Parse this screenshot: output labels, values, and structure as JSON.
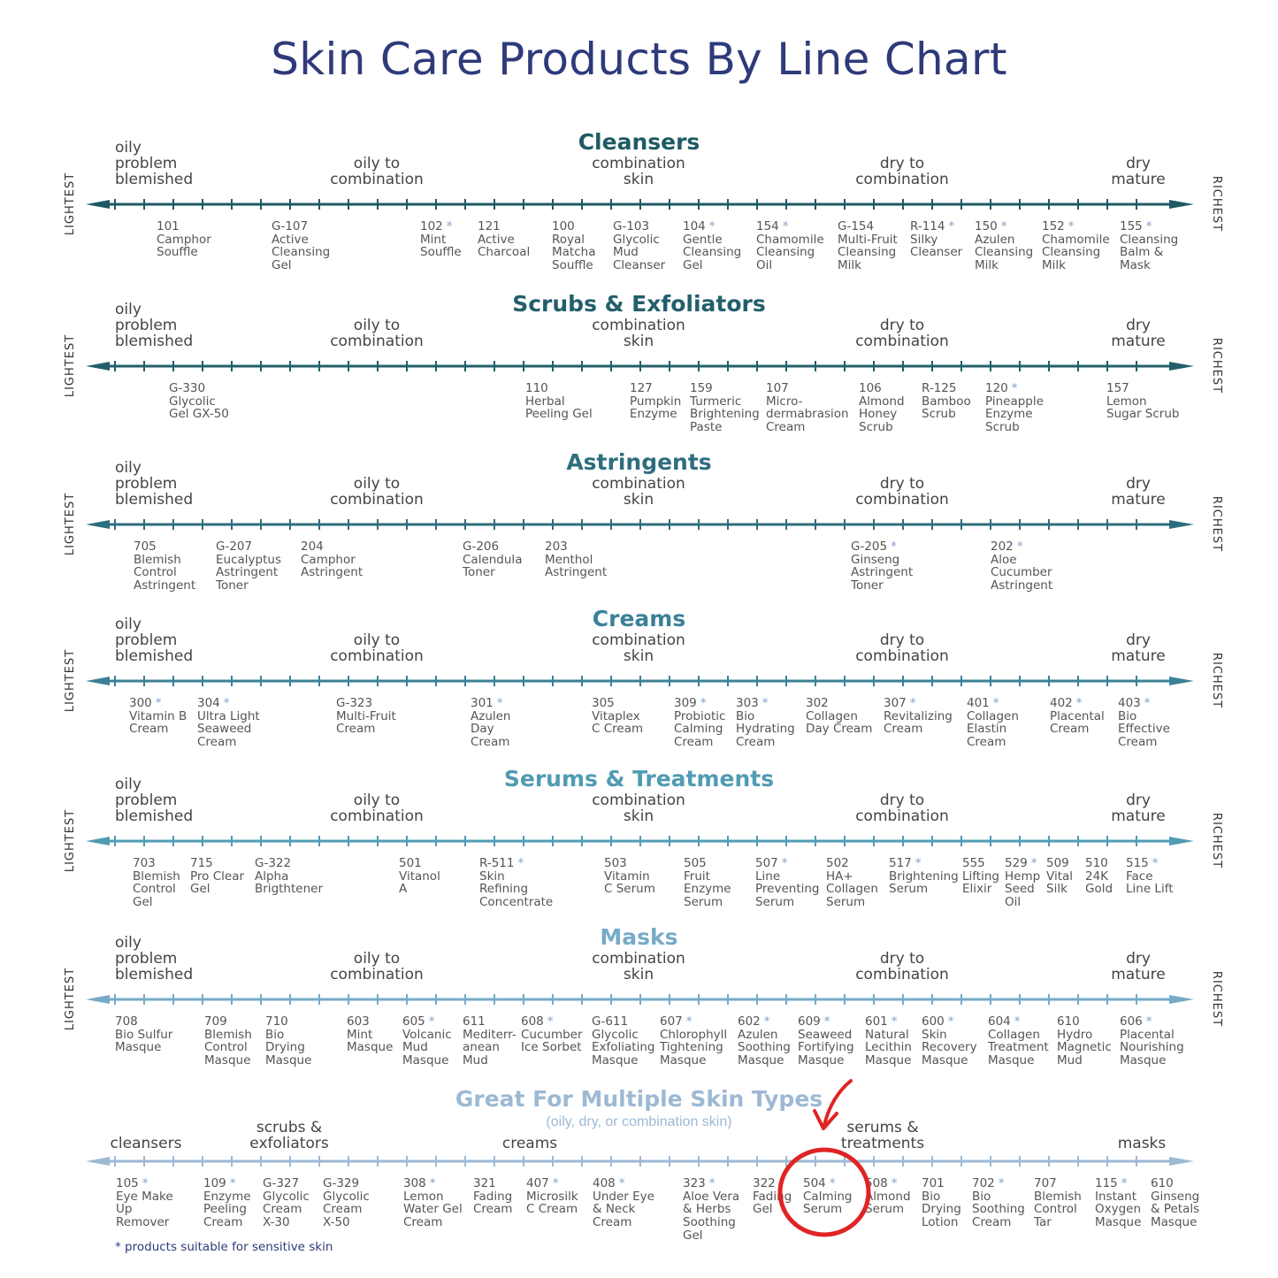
{
  "title": "Skin Care Products By Line Chart",
  "footnote": "* products suitable for sensitive skin",
  "side_left": "LIGHTEST",
  "side_right": "RICHEST",
  "skin_labels": [
    "oily\nproblem\nblemished",
    "oily to\ncombination",
    "combination\nskin",
    "dry to\ncombination",
    "dry\nmature"
  ],
  "sections": [
    {
      "title": "Cleansers",
      "color": "#1f5a63",
      "products": [
        {
          "code": "101",
          "star": false,
          "name": "Camphor\nSouffle"
        },
        {
          "code": "G-107",
          "star": false,
          "name": "Active\nCleansing\nGel"
        },
        {
          "code": "102",
          "star": true,
          "name": "Mint\nSouffle"
        },
        {
          "code": "121",
          "star": false,
          "name": "Active\nCharcoal"
        },
        {
          "code": "100",
          "star": false,
          "name": "Royal\nMatcha\nSouffle"
        },
        {
          "code": "G-103",
          "star": false,
          "name": "Glycolic\nMud\nCleanser"
        },
        {
          "code": "104",
          "star": true,
          "name": "Gentle\nCleansing\nGel"
        },
        {
          "code": "154",
          "star": true,
          "name": "Chamomile\nCleansing\nOil"
        },
        {
          "code": "G-154",
          "star": false,
          "name": "Multi-Fruit\nCleansing\nMilk"
        },
        {
          "code": "R-114",
          "star": true,
          "name": "Silky\nCleanser"
        },
        {
          "code": "150",
          "star": true,
          "name": "Azulen\nCleansing\nMilk"
        },
        {
          "code": "152",
          "star": true,
          "name": "Chamomile\nCleansing\nMilk"
        },
        {
          "code": "155",
          "star": true,
          "name": "Cleansing\nBalm &\nMask"
        }
      ]
    },
    {
      "title": "Scrubs & Exfoliators",
      "color": "#225f6b",
      "products": [
        {
          "code": "G-330",
          "star": false,
          "name": "Glycolic\nGel GX-50"
        },
        {
          "code": "110",
          "star": false,
          "name": "Herbal\nPeeling Gel"
        },
        {
          "code": "127",
          "star": false,
          "name": "Pumpkin\nEnzyme"
        },
        {
          "code": "159",
          "star": false,
          "name": "Turmeric\nBrightening\nPaste"
        },
        {
          "code": "107",
          "star": false,
          "name": "Micro-\ndermabrasion\nCream"
        },
        {
          "code": "106",
          "star": false,
          "name": "Almond\nHoney\nScrub"
        },
        {
          "code": "R-125",
          "star": false,
          "name": "Bamboo\nScrub"
        },
        {
          "code": "120",
          "star": true,
          "name": "Pineapple\nEnzyme\nScrub"
        },
        {
          "code": "157",
          "star": false,
          "name": "Lemon\nSugar Scrub"
        }
      ]
    },
    {
      "title": "Astringents",
      "color": "#2d6e7e",
      "products": [
        {
          "code": "705",
          "star": false,
          "name": "Blemish\nControl\nAstringent"
        },
        {
          "code": "G-207",
          "star": false,
          "name": "Eucalyptus\nAstringent\nToner"
        },
        {
          "code": "204",
          "star": false,
          "name": "Camphor\nAstringent"
        },
        {
          "code": "G-206",
          "star": false,
          "name": "Calendula\nToner"
        },
        {
          "code": "203",
          "star": false,
          "name": "Menthol\nAstringent"
        },
        {
          "code": "G-205",
          "star": true,
          "name": "Ginseng\nAstringent\nToner"
        },
        {
          "code": "202",
          "star": true,
          "name": "Aloe\nCucumber\nAstringent"
        }
      ]
    },
    {
      "title": "Creams",
      "color": "#3b8197",
      "products": [
        {
          "code": "300",
          "star": true,
          "name": "Vitamin B\nCream"
        },
        {
          "code": "304",
          "star": true,
          "name": "Ultra Light\nSeaweed\nCream"
        },
        {
          "code": "G-323",
          "star": false,
          "name": "Multi-Fruit\nCream"
        },
        {
          "code": "301",
          "star": true,
          "name": "Azulen\nDay\nCream"
        },
        {
          "code": "305",
          "star": false,
          "name": "Vitaplex\nC Cream"
        },
        {
          "code": "309",
          "star": true,
          "name": "Probiotic\nCalming\nCream"
        },
        {
          "code": "303",
          "star": true,
          "name": "Bio\nHydrating\nCream"
        },
        {
          "code": "302",
          "star": false,
          "name": "Collagen\nDay Cream"
        },
        {
          "code": "307",
          "star": true,
          "name": "Revitalizing\nCream"
        },
        {
          "code": "401",
          "star": true,
          "name": "Collagen\nElastin\nCream"
        },
        {
          "code": "402",
          "star": true,
          "name": "Placental\nCream"
        },
        {
          "code": "403",
          "star": true,
          "name": "Bio\nEffective\nCream"
        }
      ]
    },
    {
      "title": "Serums & Treatments",
      "color": "#519bb3",
      "products": [
        {
          "code": "703",
          "star": false,
          "name": "Blemish\nControl\nGel"
        },
        {
          "code": "715",
          "star": false,
          "name": "Pro Clear\nGel"
        },
        {
          "code": "G-322",
          "star": false,
          "name": "Alpha\nBrigthtener"
        },
        {
          "code": "501",
          "star": false,
          "name": "Vitanol\nA"
        },
        {
          "code": "R-511",
          "star": true,
          "name": "Skin\nRefining\nConcentrate"
        },
        {
          "code": "503",
          "star": false,
          "name": "Vitamin\nC Serum"
        },
        {
          "code": "505",
          "star": false,
          "name": "Fruit\nEnzyme\nSerum"
        },
        {
          "code": "507",
          "star": true,
          "name": "Line\nPreventing\nSerum"
        },
        {
          "code": "502",
          "star": false,
          "name": "HA+\nCollagen\nSerum"
        },
        {
          "code": "517",
          "star": true,
          "name": "Brightening\nSerum"
        },
        {
          "code": "555",
          "star": false,
          "name": "Lifting\nElixir"
        },
        {
          "code": "529",
          "star": true,
          "name": "Hemp\nSeed\nOil"
        },
        {
          "code": "509",
          "star": false,
          "name": "Vital\nSilk"
        },
        {
          "code": "510",
          "star": false,
          "name": "24K\nGold"
        },
        {
          "code": "515",
          "star": true,
          "name": "Face\nLine Lift"
        }
      ]
    },
    {
      "title": "Masks",
      "color": "#77aac8",
      "products": [
        {
          "code": "708",
          "star": false,
          "name": "Bio Sulfur\nMasque"
        },
        {
          "code": "709",
          "star": false,
          "name": "Blemish\nControl\nMasque"
        },
        {
          "code": "710",
          "star": false,
          "name": "Bio\nDrying\nMasque"
        },
        {
          "code": "603",
          "star": false,
          "name": "Mint\nMasque"
        },
        {
          "code": "605",
          "star": true,
          "name": "Volcanic\nMud\nMasque"
        },
        {
          "code": "611",
          "star": false,
          "name": "Mediterr-\nanean\nMud"
        },
        {
          "code": "608",
          "star": true,
          "name": "Cucumber\nIce Sorbet"
        },
        {
          "code": "G-611",
          "star": false,
          "name": "Glycolic\nExfoliating\nMasque"
        },
        {
          "code": "607",
          "star": true,
          "name": "Chlorophyll\nTightening\nMasque"
        },
        {
          "code": "602",
          "star": true,
          "name": "Azulen\nSoothing\nMasque"
        },
        {
          "code": "609",
          "star": true,
          "name": "Seaweed\nFortifying\nMasque"
        },
        {
          "code": "601",
          "star": true,
          "name": "Natural\nLecithin\nMasque"
        },
        {
          "code": "600",
          "star": true,
          "name": "Skin\nRecovery\nMasque"
        },
        {
          "code": "604",
          "star": true,
          "name": "Collagen\nTreatment\nMasque"
        },
        {
          "code": "610",
          "star": false,
          "name": "Hydro\nMagnetic\nMud"
        },
        {
          "code": "606",
          "star": true,
          "name": "Placental\nNourishing\nMasque"
        }
      ]
    },
    {
      "title": "Great For Multiple Skin Types",
      "subtitle": "(oily, dry, or combination skin)",
      "color": "#9db9d3",
      "category_labels": [
        "cleansers",
        "scrubs &\nexfoliators",
        "creams",
        "serums &\ntreatments",
        "masks"
      ],
      "products": [
        {
          "code": "105",
          "star": true,
          "name": "Eye Make\nUp\nRemover"
        },
        {
          "code": "109",
          "star": true,
          "name": "Enzyme\nPeeling\nCream"
        },
        {
          "code": "G-327",
          "star": false,
          "name": "Glycolic\nCream\nX-30"
        },
        {
          "code": "G-329",
          "star": false,
          "name": "Glycolic\nCream\nX-50"
        },
        {
          "code": "308",
          "star": true,
          "name": "Lemon\nWater Gel\nCream"
        },
        {
          "code": "321",
          "star": false,
          "name": "Fading\nCream"
        },
        {
          "code": "407",
          "star": true,
          "name": "Microsilk\nC Cream"
        },
        {
          "code": "408",
          "star": true,
          "name": "Under Eye\n& Neck\nCream"
        },
        {
          "code": "323",
          "star": true,
          "name": "Aloe Vera\n& Herbs\nSoothing\nGel"
        },
        {
          "code": "322",
          "star": false,
          "name": "Fading\nGel"
        },
        {
          "code": "504",
          "star": true,
          "name": "Calming\nSerum"
        },
        {
          "code": "508",
          "star": true,
          "name": "Almond\nSerum"
        },
        {
          "code": "701",
          "star": false,
          "name": "Bio\nDrying\nLotion"
        },
        {
          "code": "702",
          "star": true,
          "name": "Bio\nSoothing\nCream"
        },
        {
          "code": "707",
          "star": false,
          "name": "Blemish\nControl\nTar"
        },
        {
          "code": "115",
          "star": true,
          "name": "Instant\nOxygen\nMasque"
        },
        {
          "code": "610",
          "star": false,
          "name": "Ginseng\n& Petals\nMasque"
        }
      ]
    }
  ],
  "highlight": {
    "code": "504",
    "color": "#e02424"
  }
}
